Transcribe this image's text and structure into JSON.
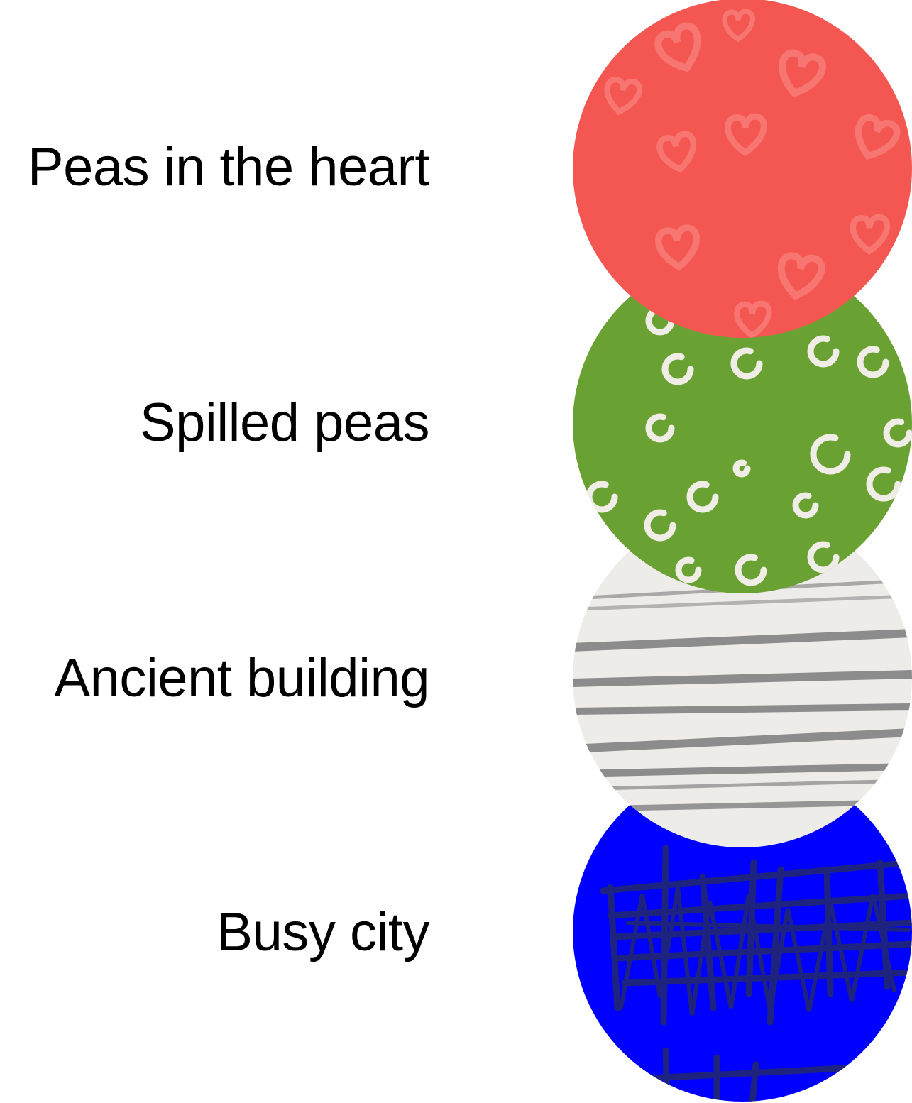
{
  "legend": {
    "items": [
      {
        "label": "Peas in the heart",
        "fill_color": "#f45752",
        "pattern_color": "#f77a74",
        "pattern_icon": "hearts-pattern-icon"
      },
      {
        "label": "Spilled peas",
        "fill_color": "#6aa133",
        "pattern_color": "#f0ede6",
        "pattern_icon": "pea-circles-pattern-icon"
      },
      {
        "label": "Ancient building",
        "fill_color": "#eeece8",
        "pattern_color": "#8c8c8c",
        "pattern_icon": "horizontal-stripes-pattern-icon"
      },
      {
        "label": "Busy city",
        "fill_color": "#0000fe",
        "pattern_color": "#1e2380",
        "pattern_icon": "scribble-grid-pattern-icon"
      }
    ]
  }
}
